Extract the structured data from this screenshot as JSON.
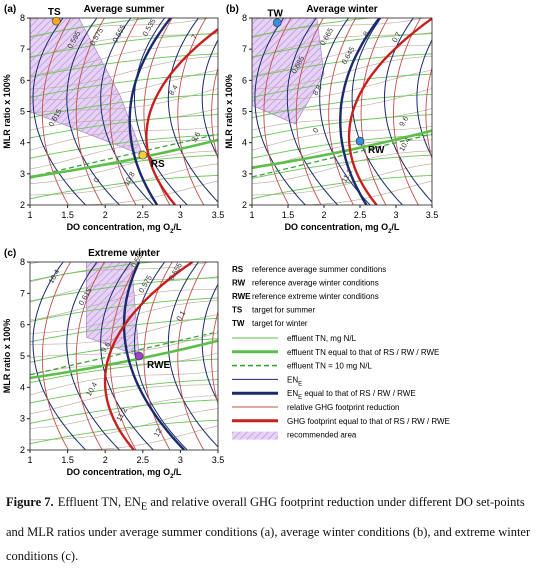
{
  "panels": [
    {
      "label": "(a)",
      "title": "Average summer",
      "xlabel": [
        "DO concentration, mg O",
        "2",
        "/L"
      ],
      "ylabel": "MLR ratio x 100%",
      "xlim": [
        1,
        3.5
      ],
      "ylim": [
        2,
        8
      ],
      "xticks": [
        1,
        1.5,
        2,
        2.5,
        3,
        3.5
      ],
      "yticks": [
        2,
        3,
        4,
        5,
        6,
        7,
        8
      ],
      "points": [
        {
          "name": "TS",
          "x": 1.35,
          "y": 7.9,
          "color": "#f2a81d"
        },
        {
          "name": "RS",
          "x": 2.5,
          "y": 3.6,
          "color": "#f0d23c"
        }
      ],
      "contour_labels": [
        "0.595",
        "0.575",
        "0.555",
        "0.535",
        "7",
        "8.4",
        "9.6",
        "10.8",
        "0.615",
        "0"
      ]
    },
    {
      "label": "(b)",
      "title": "Average winter",
      "xlabel": [
        "DO concentration, mg O",
        "2",
        "/L"
      ],
      "ylabel": "MLR ratio x 100%",
      "xlim": [
        1,
        3.5
      ],
      "ylim": [
        2,
        8
      ],
      "xticks": [
        1,
        1.5,
        2,
        2.5,
        3,
        3.5
      ],
      "yticks": [
        2,
        3,
        4,
        5,
        6,
        7,
        8
      ],
      "points": [
        {
          "name": "TW",
          "x": 1.35,
          "y": 7.85,
          "color": "#3a8ee0"
        },
        {
          "name": "RW",
          "x": 2.5,
          "y": 4.05,
          "color": "#3a8ee0"
        }
      ],
      "contour_labels": [
        "0.685",
        "0.665",
        "0.7",
        "8",
        "8.8",
        "9.6",
        "10.4",
        "11.2",
        "0",
        "0.645"
      ]
    },
    {
      "label": "(c)",
      "title": "Extreme winter",
      "xlabel": [
        "DO concentration, mg O",
        "2",
        "/L"
      ],
      "ylabel": "MLR ratio x 100%",
      "xlim": [
        1,
        3.5
      ],
      "ylim": [
        2,
        8
      ],
      "xticks": [
        1,
        1.5,
        2,
        2.5,
        3,
        3.5
      ],
      "yticks": [
        2,
        3,
        4,
        5,
        6,
        7,
        8
      ],
      "points": [
        {
          "name": "RWE",
          "x": 2.45,
          "y": 5.0,
          "color": "#a040d0"
        }
      ],
      "contour_labels": [
        "10.4",
        "0.615",
        "0.575",
        "0.595",
        "0.555",
        "9.6",
        "10.4",
        "11.2",
        "12",
        "0.1"
      ]
    }
  ],
  "legend": {
    "markers": [
      {
        "key": "RS",
        "text": "reference average summer conditions"
      },
      {
        "key": "RW",
        "text": "reference average winter conditions"
      },
      {
        "key": "RWE",
        "text": "reference extreme winter conditions"
      },
      {
        "key": "TS",
        "text": "target for summer"
      },
      {
        "key": "TW",
        "text": "target for winter"
      }
    ],
    "lines": [
      {
        "style": "thin",
        "color": "#5cbf4a",
        "parts": [
          "effluent TN, mg N/L"
        ]
      },
      {
        "style": "thick",
        "color": "#5cbf4a",
        "parts": [
          "effluent TN equal to that of RS / RW / RWE"
        ]
      },
      {
        "style": "dashed",
        "color": "#3aa33a",
        "parts": [
          "effluent TN = 10 mg N/L"
        ]
      },
      {
        "style": "thin",
        "color": "#1a2a6c",
        "parts": [
          "EN",
          "E"
        ]
      },
      {
        "style": "thick",
        "color": "#1a2a6c",
        "parts": [
          "EN",
          "E",
          " equal to that of RS / RW / RWE"
        ]
      },
      {
        "style": "thin",
        "color": "#c0504d",
        "parts": [
          "relative GHG footprint reduction"
        ]
      },
      {
        "style": "thick",
        "color": "#c8201e",
        "parts": [
          "GHG footprint equal to that of RS / RW / RWE"
        ]
      },
      {
        "style": "area",
        "color": "#c9a6e6",
        "parts": [
          "recommended area"
        ]
      }
    ]
  },
  "caption": {
    "label": "Figure 7.",
    "parts": [
      "Effluent TN, EN",
      "E",
      " and relative overall GHG footprint reduction under different DO set-points and MLR ratios under average summer conditions (a), average winter conditions (b), and extreme winter conditions (c)."
    ]
  }
}
